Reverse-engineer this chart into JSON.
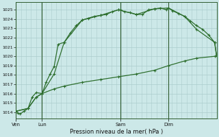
{
  "xlabel": "Pression niveau de la mer( hPa )",
  "ylim": [
    1013.3,
    1025.8
  ],
  "yticks": [
    1014,
    1015,
    1016,
    1017,
    1018,
    1019,
    1020,
    1021,
    1022,
    1023,
    1024,
    1025
  ],
  "background_color": "#cce8e8",
  "grid_color": "#aacccc",
  "line_color": "#2d6e2d",
  "xlim": [
    0,
    100
  ],
  "ven_x": 0,
  "lun_x": 13,
  "sam_x": 52,
  "dim_x": 76,
  "end_x": 100,
  "s1x": [
    0,
    1,
    2,
    4,
    6,
    8,
    10,
    13,
    15,
    17,
    19,
    21,
    24,
    27,
    30,
    33,
    36,
    39,
    42,
    45,
    48,
    51,
    52,
    54,
    57,
    60,
    63,
    66,
    69,
    72,
    75,
    76,
    78,
    81,
    84,
    87,
    90,
    93,
    96,
    99,
    100
  ],
  "s1y": [
    1014.1,
    1013.9,
    1013.8,
    1014.1,
    1014.4,
    1015.6,
    1016.1,
    1016.0,
    1017.2,
    1018.1,
    1018.9,
    1021.3,
    1021.5,
    1022.5,
    1023.3,
    1023.9,
    1024.1,
    1024.3,
    1024.4,
    1024.5,
    1024.8,
    1025.0,
    1025.0,
    1024.8,
    1024.7,
    1024.5,
    1024.5,
    1025.0,
    1025.1,
    1025.2,
    1025.0,
    1025.2,
    1024.9,
    1024.6,
    1024.3,
    1023.8,
    1023.3,
    1022.9,
    1022.3,
    1021.5,
    1020.0
  ],
  "s2x": [
    0,
    6,
    10,
    13,
    19,
    24,
    33,
    42,
    51,
    60,
    69,
    76,
    84,
    90,
    99,
    100
  ],
  "s2y": [
    1014.1,
    1014.4,
    1015.6,
    1016.0,
    1018.1,
    1021.5,
    1023.9,
    1024.4,
    1025.0,
    1024.5,
    1025.1,
    1025.2,
    1024.3,
    1022.9,
    1021.5,
    1020.0
  ],
  "s3x": [
    0,
    6,
    10,
    13,
    19,
    24,
    33,
    42,
    51,
    60,
    69,
    76,
    84,
    90,
    99,
    100
  ],
  "s3y": [
    1014.1,
    1014.4,
    1015.6,
    1016.0,
    1016.5,
    1016.8,
    1017.2,
    1017.5,
    1017.8,
    1018.1,
    1018.5,
    1019.0,
    1019.5,
    1019.8,
    1020.0,
    1020.0
  ]
}
